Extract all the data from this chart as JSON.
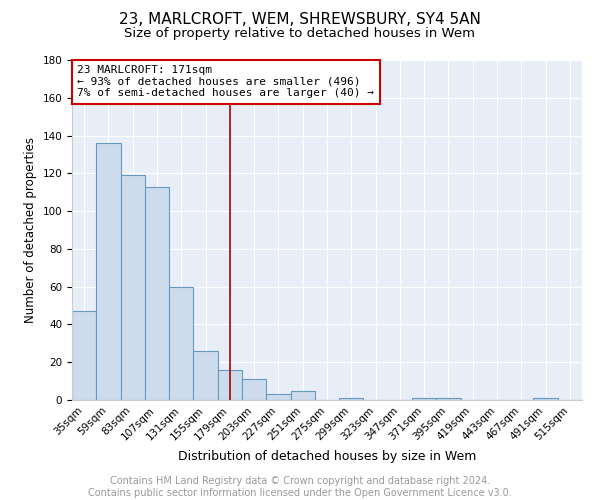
{
  "title": "23, MARLCROFT, WEM, SHREWSBURY, SY4 5AN",
  "subtitle": "Size of property relative to detached houses in Wem",
  "xlabel": "Distribution of detached houses by size in Wem",
  "ylabel": "Number of detached properties",
  "bar_color": "#ccdcec",
  "bar_edge_color": "#6699bb",
  "plot_bg_color": "#e8eef8",
  "grid_color": "#ffffff",
  "categories": [
    "35sqm",
    "59sqm",
    "83sqm",
    "107sqm",
    "131sqm",
    "155sqm",
    "179sqm",
    "203sqm",
    "227sqm",
    "251sqm",
    "275sqm",
    "299sqm",
    "323sqm",
    "347sqm",
    "371sqm",
    "395sqm",
    "419sqm",
    "443sqm",
    "467sqm",
    "491sqm",
    "515sqm"
  ],
  "values": [
    47,
    136,
    119,
    113,
    60,
    26,
    16,
    11,
    3,
    5,
    0,
    1,
    0,
    0,
    1,
    1,
    0,
    0,
    0,
    1,
    0
  ],
  "annotation_line1": "23 MARLCROFT: 171sqm",
  "annotation_line2": "← 93% of detached houses are smaller (496)",
  "annotation_line3": "7% of semi-detached houses are larger (40) →",
  "annotation_box_color": "#ffffff",
  "annotation_border_color": "#cc0000",
  "vline_index": 6,
  "ylim": [
    0,
    180
  ],
  "yticks": [
    0,
    20,
    40,
    60,
    80,
    100,
    120,
    140,
    160,
    180
  ],
  "footer_text": "Contains HM Land Registry data © Crown copyright and database right 2024.\nContains public sector information licensed under the Open Government Licence v3.0.",
  "title_fontsize": 11,
  "subtitle_fontsize": 9.5,
  "xlabel_fontsize": 9,
  "ylabel_fontsize": 8.5,
  "annotation_fontsize": 8,
  "footer_fontsize": 7,
  "tick_fontsize": 7.5
}
